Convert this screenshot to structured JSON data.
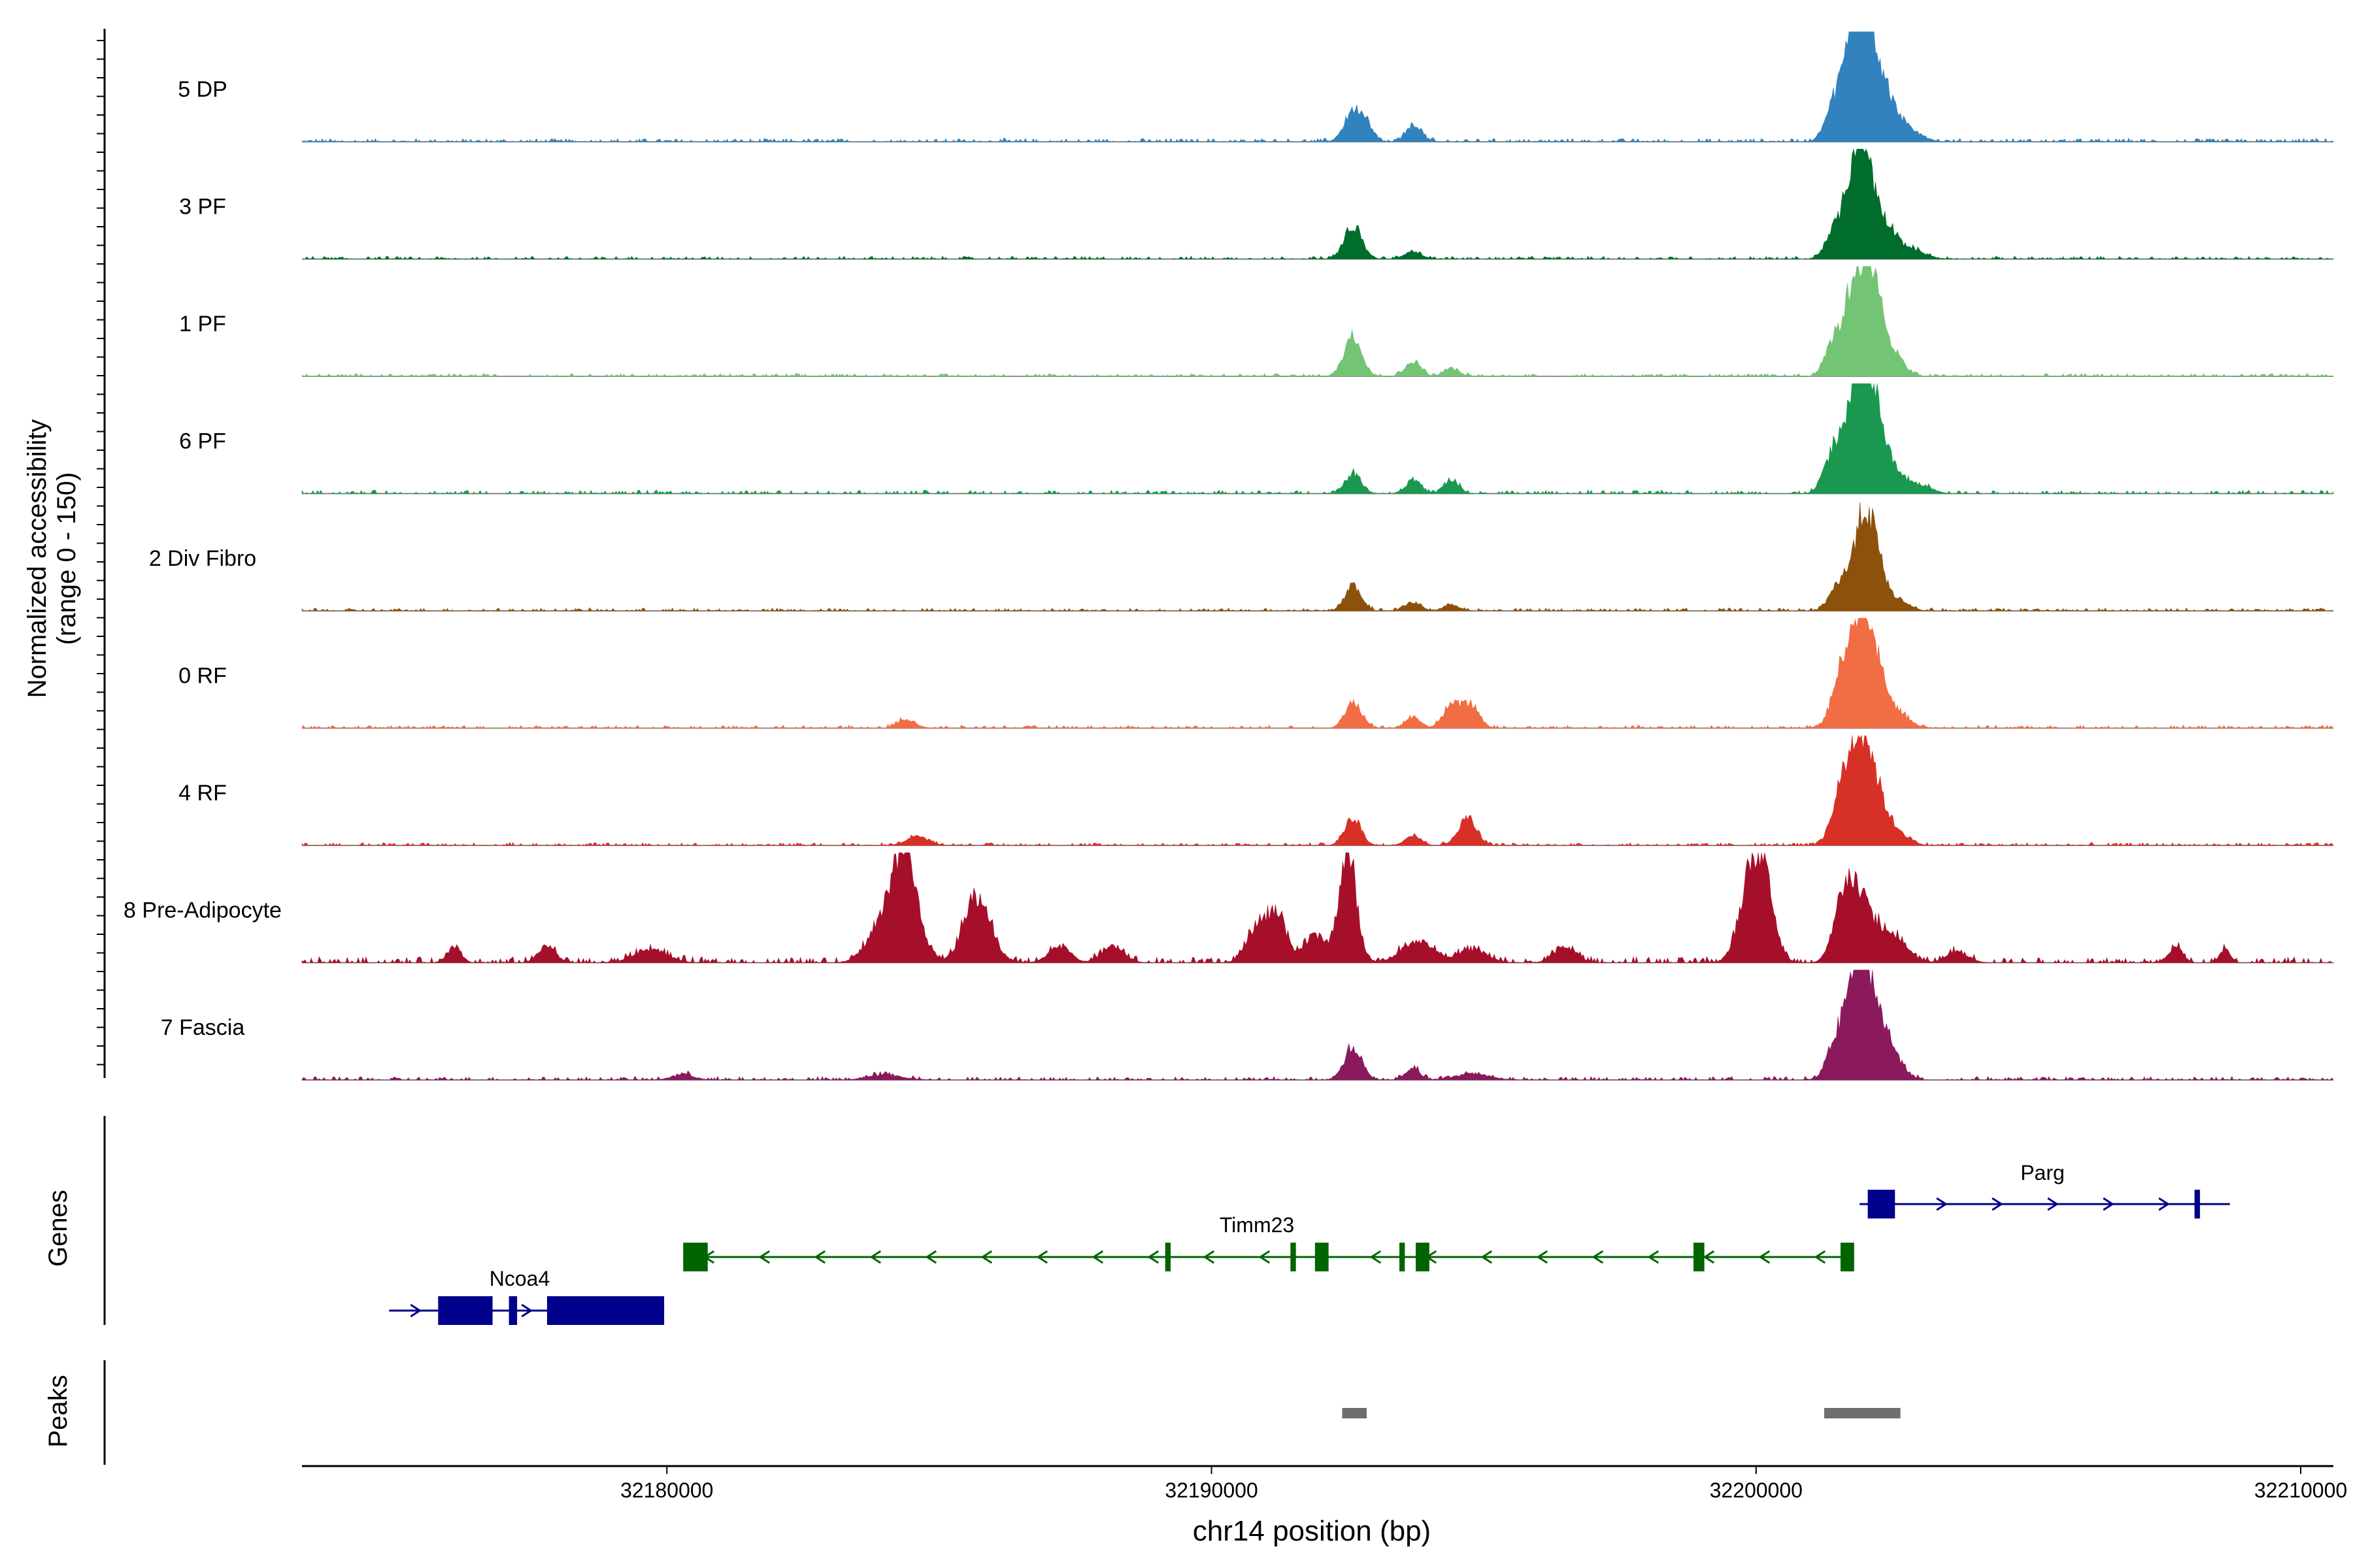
{
  "chart_data": {
    "type": "area",
    "title": "",
    "ylabel_line1": "Normalized accessibility",
    "ylabel_line2": "(range 0 - 150)",
    "xlabel": "chr14 position (bp)",
    "xlim": [
      32173300,
      32210600
    ],
    "ylim": [
      0,
      150
    ],
    "x_ticks": [
      32180000,
      32190000,
      32200000,
      32210000
    ],
    "x_tick_labels": [
      "32180000",
      "32190000",
      "32200000",
      "32210000"
    ],
    "tracks": [
      {
        "name": "5 DP",
        "color": "#3182bd",
        "peaks": [
          [
            32192600,
            0.28,
            160
          ],
          [
            32192850,
            0.14,
            120
          ],
          [
            32193720,
            0.15,
            140
          ],
          [
            32201400,
            0.28,
            150
          ],
          [
            32201700,
            0.45,
            160
          ],
          [
            32201900,
            0.95,
            190
          ],
          [
            32202150,
            0.55,
            170
          ],
          [
            32202450,
            0.32,
            200
          ],
          [
            32202900,
            0.08,
            200
          ]
        ],
        "noise": 0.03
      },
      {
        "name": "3 PF",
        "color": "#006d2c",
        "peaks": [
          [
            32192600,
            0.3,
            160
          ],
          [
            32193700,
            0.07,
            150
          ],
          [
            32201400,
            0.2,
            150
          ],
          [
            32201650,
            0.25,
            160
          ],
          [
            32201900,
            1.0,
            170
          ],
          [
            32202150,
            0.35,
            160
          ],
          [
            32202450,
            0.25,
            180
          ],
          [
            32202900,
            0.08,
            220
          ]
        ],
        "noise": 0.025
      },
      {
        "name": "1 PF",
        "color": "#74c476",
        "peaks": [
          [
            32192600,
            0.38,
            160
          ],
          [
            32193700,
            0.14,
            140
          ],
          [
            32194400,
            0.07,
            140
          ],
          [
            32201400,
            0.28,
            150
          ],
          [
            32201700,
            0.38,
            160
          ],
          [
            32201950,
            0.85,
            190
          ],
          [
            32202200,
            0.45,
            170
          ],
          [
            32202500,
            0.2,
            200
          ]
        ],
        "noise": 0.025
      },
      {
        "name": "6 PF",
        "color": "#1a9850",
        "peaks": [
          [
            32192600,
            0.18,
            150
          ],
          [
            32193700,
            0.12,
            140
          ],
          [
            32194400,
            0.12,
            140
          ],
          [
            32201400,
            0.35,
            160
          ],
          [
            32201700,
            0.4,
            160
          ],
          [
            32201950,
            1.0,
            180
          ],
          [
            32202200,
            0.5,
            170
          ],
          [
            32202500,
            0.2,
            200
          ],
          [
            32203000,
            0.08,
            220
          ]
        ],
        "noise": 0.03
      },
      {
        "name": "2 Div Fibro",
        "color": "#8c510a",
        "peaks": [
          [
            32192600,
            0.22,
            150
          ],
          [
            32193700,
            0.08,
            140
          ],
          [
            32194400,
            0.06,
            140
          ],
          [
            32201500,
            0.22,
            160
          ],
          [
            32201950,
            0.78,
            190
          ],
          [
            32202200,
            0.35,
            170
          ],
          [
            32202600,
            0.1,
            200
          ]
        ],
        "noise": 0.025
      },
      {
        "name": "0 RF",
        "color": "#f16d43",
        "peaks": [
          [
            32184400,
            0.08,
            160
          ],
          [
            32192600,
            0.24,
            150
          ],
          [
            32193700,
            0.1,
            140
          ],
          [
            32194400,
            0.2,
            150
          ],
          [
            32194750,
            0.22,
            160
          ],
          [
            32201500,
            0.28,
            160
          ],
          [
            32201700,
            0.4,
            160
          ],
          [
            32201950,
            0.9,
            180
          ],
          [
            32202200,
            0.45,
            170
          ],
          [
            32202600,
            0.15,
            200
          ]
        ],
        "noise": 0.025
      },
      {
        "name": "4 RF",
        "color": "#d73027",
        "peaks": [
          [
            32184600,
            0.08,
            200
          ],
          [
            32192600,
            0.25,
            150
          ],
          [
            32193700,
            0.1,
            140
          ],
          [
            32194700,
            0.25,
            170
          ],
          [
            32201500,
            0.3,
            160
          ],
          [
            32201700,
            0.38,
            160
          ],
          [
            32201950,
            0.9,
            180
          ],
          [
            32202250,
            0.35,
            170
          ],
          [
            32202600,
            0.12,
            200
          ]
        ],
        "noise": 0.025
      },
      {
        "name": "8 Pre-Adipocyte",
        "color": "#a50f2a",
        "peaks": [
          [
            32176100,
            0.15,
            120
          ],
          [
            32177800,
            0.15,
            160
          ],
          [
            32179700,
            0.12,
            300
          ],
          [
            32183900,
            0.3,
            250
          ],
          [
            32184300,
            0.85,
            200
          ],
          [
            32184550,
            0.35,
            200
          ],
          [
            32185700,
            0.6,
            250
          ],
          [
            32187200,
            0.15,
            200
          ],
          [
            32188200,
            0.15,
            200
          ],
          [
            32190800,
            0.3,
            180
          ],
          [
            32191200,
            0.45,
            180
          ],
          [
            32191900,
            0.25,
            200
          ],
          [
            32192500,
            1.0,
            160
          ],
          [
            32193800,
            0.2,
            300
          ],
          [
            32194800,
            0.12,
            250
          ],
          [
            32196500,
            0.15,
            200
          ],
          [
            32199800,
            0.45,
            180
          ],
          [
            32200100,
            0.9,
            200
          ],
          [
            32201500,
            0.25,
            160
          ],
          [
            32201700,
            0.55,
            160
          ],
          [
            32202000,
            0.45,
            200
          ],
          [
            32202500,
            0.25,
            250
          ],
          [
            32203700,
            0.1,
            200
          ],
          [
            32207700,
            0.15,
            120
          ],
          [
            32208600,
            0.12,
            100
          ]
        ],
        "noise": 0.05
      },
      {
        "name": "7 Fascia",
        "color": "#8a1a5c",
        "peaks": [
          [
            32180300,
            0.05,
            200
          ],
          [
            32184000,
            0.05,
            300
          ],
          [
            32192600,
            0.3,
            160
          ],
          [
            32193700,
            0.1,
            140
          ],
          [
            32194800,
            0.06,
            300
          ],
          [
            32201500,
            0.35,
            180
          ],
          [
            32201800,
            0.55,
            180
          ],
          [
            32201950,
            0.72,
            150
          ],
          [
            32202200,
            0.5,
            180
          ],
          [
            32202500,
            0.22,
            200
          ]
        ],
        "noise": 0.03
      }
    ],
    "genes_label": "Genes",
    "genes": [
      {
        "name": "Ncoa4",
        "strand": "+",
        "color": "#00008b",
        "start": 32174900,
        "end": 32179950,
        "exons": [
          [
            32175800,
            32176800
          ],
          [
            32177100,
            32177250
          ],
          [
            32177800,
            32179950
          ]
        ]
      },
      {
        "name": "Timm23",
        "strand": "-",
        "color": "#006400",
        "start": 32180300,
        "end": 32201800,
        "exons": [
          [
            32180300,
            32180750
          ],
          [
            32189150,
            32189250
          ],
          [
            32191450,
            32191550
          ],
          [
            32191900,
            32192150
          ],
          [
            32193450,
            32193550
          ],
          [
            32193750,
            32194000
          ],
          [
            32198850,
            32199050
          ],
          [
            32201550,
            32201800
          ]
        ]
      },
      {
        "name": "Parg",
        "strand": "+",
        "color": "#00008b",
        "start": 32201900,
        "end": 32208700,
        "exons": [
          [
            32202050,
            32202550
          ],
          [
            32208050,
            32208150
          ]
        ]
      }
    ],
    "peaks_label": "Peaks",
    "peak_regions": [
      [
        32192400,
        32192850
      ],
      [
        32201250,
        32202650
      ]
    ]
  }
}
